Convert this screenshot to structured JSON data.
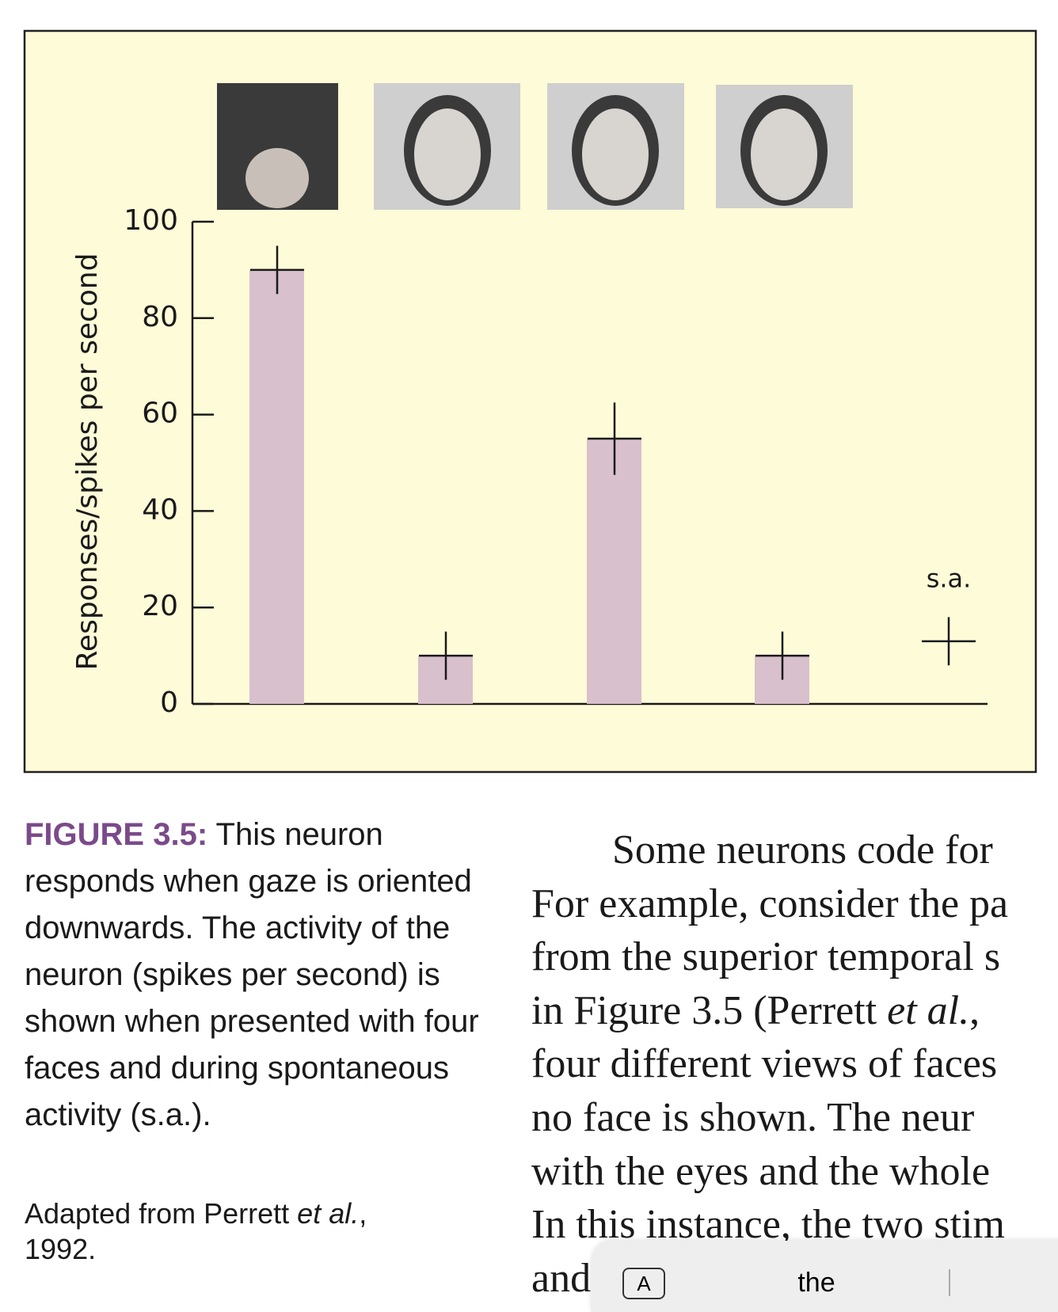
{
  "chart_data": {
    "type": "bar",
    "y_label": "Responses/spikes per second",
    "categories": [
      null,
      null,
      null,
      null,
      "s.a."
    ],
    "values": [
      90,
      10,
      55,
      10,
      13
    ],
    "errors": [
      5,
      5,
      7.5,
      5,
      5
    ],
    "bar_drawn": [
      true,
      true,
      true,
      true,
      false
    ],
    "color": "#d8c0cc",
    "ylim": [
      0,
      100
    ],
    "yticks": [
      0,
      20,
      40,
      60,
      80,
      100
    ]
  },
  "caption": {
    "label": "FIGURE 3.5:",
    "text": "This neuron responds when gaze is oriented downwards. The activity of the neuron (spikes per second) is shown when presented with four faces and during spontaneous activity (s.a.).",
    "source": [
      "Adapted from Perrett ",
      "et al.",
      ",",
      "1992."
    ]
  },
  "body": {
    "lines": [
      "Some neurons code for",
      "For example, consider the pa",
      "from the superior temporal s",
      [
        "in Figure 3.5 (Perrett ",
        "et al.",
        ","
      ],
      "four different views of faces",
      "no face is shown. The neur",
      "with the eyes and the whole",
      "In this instance, the two stim",
      "and"
    ]
  },
  "toolbar": {
    "key": "A",
    "suggestion": "the"
  }
}
